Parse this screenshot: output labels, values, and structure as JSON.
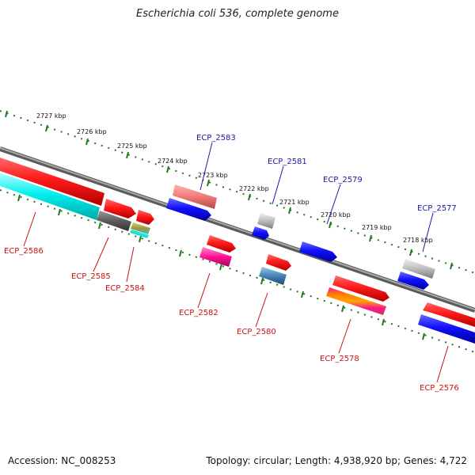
{
  "title": "Escherichia coli 536, complete genome",
  "accession": "Accession: NC_008253",
  "summary": "Topology: circular; Length: 4,938,920 bp; Genes: 4,722",
  "kbp_labels": [
    "2727 kbp",
    "2726 kbp",
    "2725 kbp",
    "2724 kbp",
    "2723 kbp",
    "2722 kbp",
    "2721 kbp",
    "2720 kbp",
    "2719 kbp",
    "2718 kbp"
  ],
  "gene_labels": {
    "top": [
      "ECP_2583",
      "ECP_2581",
      "ECP_2579",
      "ECP_2577"
    ],
    "bottom": [
      "ECP_2586",
      "ECP_2585",
      "ECP_2584",
      "ECP_2582",
      "ECP_2580",
      "ECP_2578",
      "ECP_2576"
    ]
  },
  "colors": {
    "top_label": "#1a1aa0",
    "bottom_label": "#cc1111",
    "tick": "#1f7a1f",
    "backbone": "#808080"
  }
}
